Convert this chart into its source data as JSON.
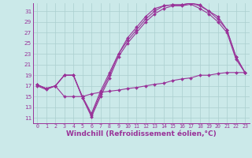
{
  "background_color": "#cbe9e9",
  "grid_color": "#aacfcf",
  "line_color": "#993399",
  "xlabel": "Windchill (Refroidissement éolien,°C)",
  "xlabel_fontsize": 6.5,
  "ytick_labels": [
    "11",
    "13",
    "15",
    "17",
    "19",
    "21",
    "23",
    "25",
    "27",
    "29",
    "31"
  ],
  "ytick_vals": [
    11,
    13,
    15,
    17,
    19,
    21,
    23,
    25,
    27,
    29,
    31
  ],
  "xtick_vals": [
    0,
    1,
    2,
    3,
    4,
    5,
    6,
    7,
    8,
    9,
    10,
    11,
    12,
    13,
    14,
    15,
    16,
    17,
    18,
    19,
    20,
    21,
    22,
    23
  ],
  "xlim": [
    -0.5,
    23.5
  ],
  "ylim": [
    10,
    32.5
  ],
  "line1_x": [
    0,
    1,
    2,
    3,
    4,
    5,
    6,
    7,
    8,
    9,
    10,
    11,
    12,
    13,
    14,
    15,
    16,
    17,
    18,
    19,
    20,
    21,
    22,
    23
  ],
  "line1_y": [
    17.2,
    16.5,
    17.0,
    19.0,
    19.0,
    14.8,
    11.2,
    15.0,
    18.5,
    22.5,
    25.0,
    27.0,
    29.0,
    30.5,
    31.5,
    32.0,
    32.0,
    32.3,
    31.5,
    30.5,
    29.0,
    27.0,
    22.0,
    19.5
  ],
  "line2_x": [
    0,
    1,
    2,
    3,
    4,
    5,
    6,
    7,
    8,
    9,
    10,
    11,
    12,
    13,
    14,
    15,
    16,
    17,
    18,
    19,
    20,
    21,
    22,
    23
  ],
  "line2_y": [
    17.2,
    16.5,
    17.0,
    19.0,
    19.0,
    14.8,
    11.5,
    15.5,
    19.0,
    23.0,
    25.5,
    27.5,
    29.5,
    31.0,
    32.0,
    32.2,
    32.2,
    32.5,
    32.0,
    31.0,
    29.5,
    27.5,
    22.5,
    19.5
  ],
  "line3_x": [
    0,
    1,
    2,
    3,
    4,
    5,
    6,
    7,
    8,
    9,
    10,
    11,
    12,
    13,
    14,
    15,
    16,
    17,
    18,
    19,
    20,
    21,
    22,
    23
  ],
  "line3_y": [
    17.2,
    16.5,
    17.0,
    19.0,
    19.0,
    15.0,
    11.8,
    16.0,
    19.5,
    23.0,
    26.0,
    28.0,
    30.0,
    31.5,
    32.0,
    32.2,
    32.2,
    32.5,
    32.2,
    31.0,
    30.0,
    27.5,
    22.5,
    19.5
  ],
  "line4_x": [
    0,
    1,
    2,
    3,
    4,
    5,
    6,
    7,
    8,
    9,
    10,
    11,
    12,
    13,
    14,
    15,
    16,
    17,
    18,
    19,
    20,
    21,
    22,
    23
  ],
  "line4_y": [
    17.0,
    16.3,
    17.0,
    15.0,
    15.0,
    15.0,
    15.5,
    15.8,
    16.0,
    16.2,
    16.5,
    16.7,
    17.0,
    17.3,
    17.5,
    18.0,
    18.3,
    18.5,
    19.0,
    19.0,
    19.3,
    19.5,
    19.5,
    19.5
  ],
  "marker": "D",
  "markersize": 2.0,
  "linewidth": 0.8
}
